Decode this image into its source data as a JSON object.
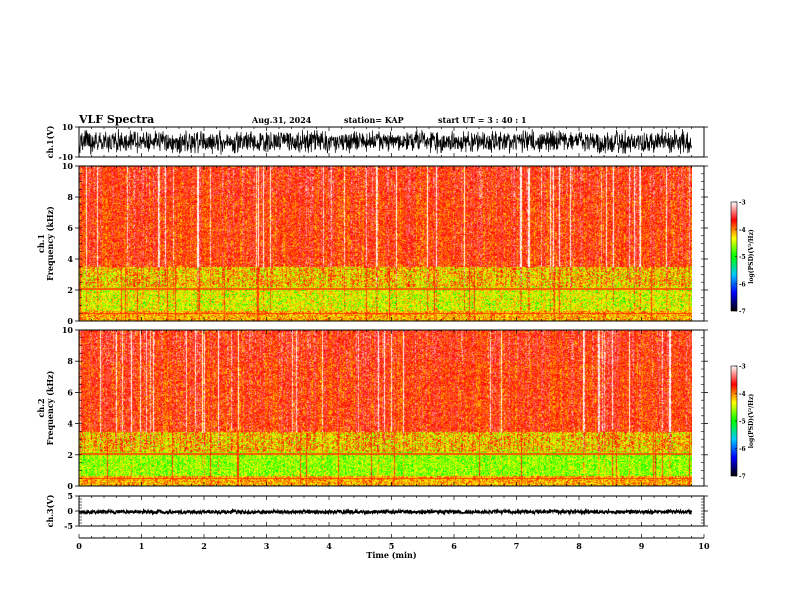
{
  "header": {
    "title": "VLF Spectra",
    "date": "Aug.31, 2024",
    "station": "station= KAP",
    "start": "start  UT  =   3  : 40 : 1"
  },
  "colors": {
    "background": "#ffffff",
    "axis": "#000000",
    "colormap": [
      "#000000",
      "#0000ff",
      "#00c8ff",
      "#00ff00",
      "#ffff00",
      "#ff0000",
      "#ffffff"
    ]
  },
  "chart_data": [
    {
      "id": "ch1-waveform",
      "type": "line",
      "ylabel": "ch.1(V)",
      "ylim": [
        -10,
        10
      ],
      "y_ticks": [
        "10",
        "-10"
      ],
      "xlim": [
        0,
        10
      ]
    },
    {
      "id": "ch1-spectrogram",
      "type": "heatmap",
      "ylabel": "ch.1\nFrequency (kHz)",
      "ylim": [
        0,
        10
      ],
      "y_ticks": [
        "0",
        "2",
        "4",
        "6",
        "8",
        "10"
      ],
      "xlim": [
        0,
        10
      ],
      "data_end_min": 9.8,
      "colorbar": {
        "label": "log(PSD)(V²/Hz)",
        "range": [
          -7,
          -3
        ],
        "ticks": [
          "-3",
          "-4",
          "-5",
          "-6",
          "-7"
        ]
      }
    },
    {
      "id": "ch2-spectrogram",
      "type": "heatmap",
      "ylabel": "ch.2\nFrequency (kHz)",
      "ylim": [
        0,
        10
      ],
      "y_ticks": [
        "0",
        "2",
        "4",
        "6",
        "8",
        "10"
      ],
      "xlim": [
        0,
        10
      ],
      "data_end_min": 9.8,
      "colorbar": {
        "label": "log(PSD)(V²/Hz)",
        "range": [
          -7,
          -3
        ],
        "ticks": [
          "-3",
          "-4",
          "-5",
          "-6",
          "-7"
        ]
      }
    },
    {
      "id": "ch3-waveform",
      "type": "line",
      "ylabel": "ch.3(V)",
      "ylim": [
        -5,
        5
      ],
      "y_ticks": [
        "5",
        "0",
        "-5"
      ],
      "xlim": [
        0,
        10
      ],
      "xlabel": "Time (min)",
      "x_ticks": [
        "0",
        "1",
        "2",
        "3",
        "4",
        "5",
        "6",
        "7",
        "8",
        "9",
        "10"
      ]
    }
  ]
}
